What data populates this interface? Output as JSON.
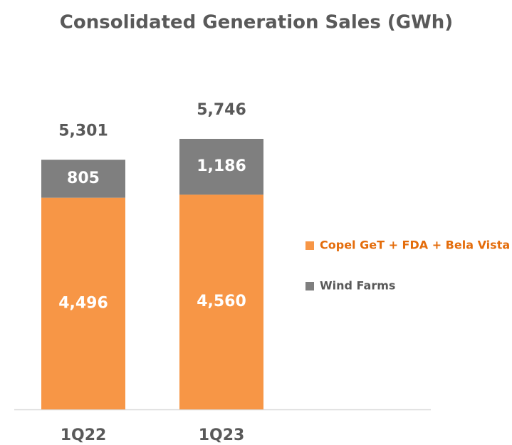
{
  "chart_data": {
    "type": "stacked_bar",
    "title": "Consolidated Generation Sales (GWh)",
    "categories": [
      "1Q22",
      "1Q23"
    ],
    "series": [
      {
        "name": "Copel GeT + FDA + Bela Vista",
        "color": "#f79646",
        "values": [
          4496,
          4560
        ],
        "value_labels": [
          "4,496",
          "4,560"
        ]
      },
      {
        "name": "Wind Farms",
        "color": "#7f7f7f",
        "values": [
          805,
          1186
        ],
        "value_labels": [
          "805",
          "1,186"
        ]
      }
    ],
    "totals": [
      5301,
      5746
    ],
    "total_labels": [
      "5,301",
      "5,746"
    ],
    "legend": "right"
  }
}
